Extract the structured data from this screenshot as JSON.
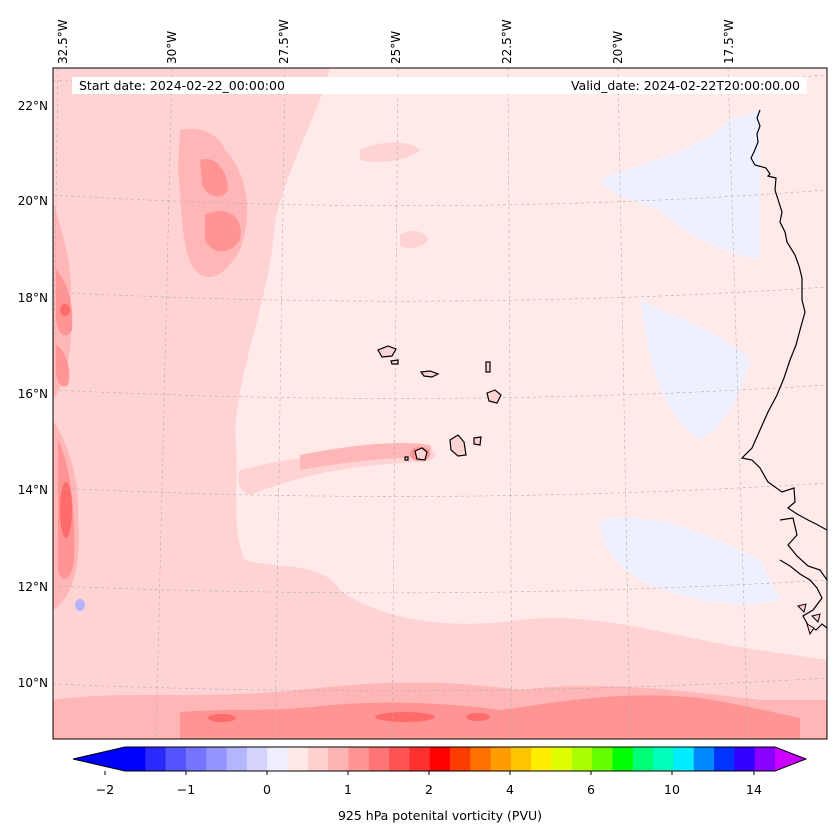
{
  "map": {
    "start_date": "Start date: 2024-02-22_00:00:00",
    "valid_date": "Valid_date: 2024-02-22T20:00:00.00",
    "lon_labels": [
      "32.5°W",
      "30°W",
      "27.5°W",
      "25°W",
      "22.5°W",
      "20°W",
      "17.5°W"
    ],
    "lat_labels": [
      "22°N",
      "20°N",
      "18°N",
      "16°N",
      "14°N",
      "12°N",
      "10°N"
    ],
    "colorbar": {
      "label": "925 hPa potenital vorticity (PVU)",
      "ticks": [
        "−2",
        "−1",
        "0",
        "1",
        "2",
        "4",
        "6",
        "10",
        "14"
      ],
      "colors": [
        "#0000ff",
        "#2a2aff",
        "#5454ff",
        "#7474ff",
        "#9494ff",
        "#b4b4ff",
        "#d4d4ff",
        "#eeeeff",
        "#ffe8e8",
        "#ffd0d0",
        "#ffb4b4",
        "#ff9494",
        "#ff7474",
        "#ff5454",
        "#ff3030",
        "#ff0000",
        "#ff3c00",
        "#ff7000",
        "#ff9c00",
        "#ffc400",
        "#ffee00",
        "#ddff00",
        "#aaff00",
        "#66ff00",
        "#00ff00",
        "#00ff77",
        "#00ffbb",
        "#00eeff",
        "#0088ff",
        "#0033ff",
        "#3300ff",
        "#8800ff"
      ],
      "under_color": "#0000ff",
      "over_color": "#cc00ff"
    },
    "colors": {
      "background_field": "#ffe9e9",
      "light_pink": "#ffd3d3",
      "mid_pink": "#ffb6b6",
      "strong_pink": "#ff9494",
      "deep_red": "#ff6a6a",
      "light_blue": "#eef0ff",
      "coast": "#000000"
    }
  }
}
